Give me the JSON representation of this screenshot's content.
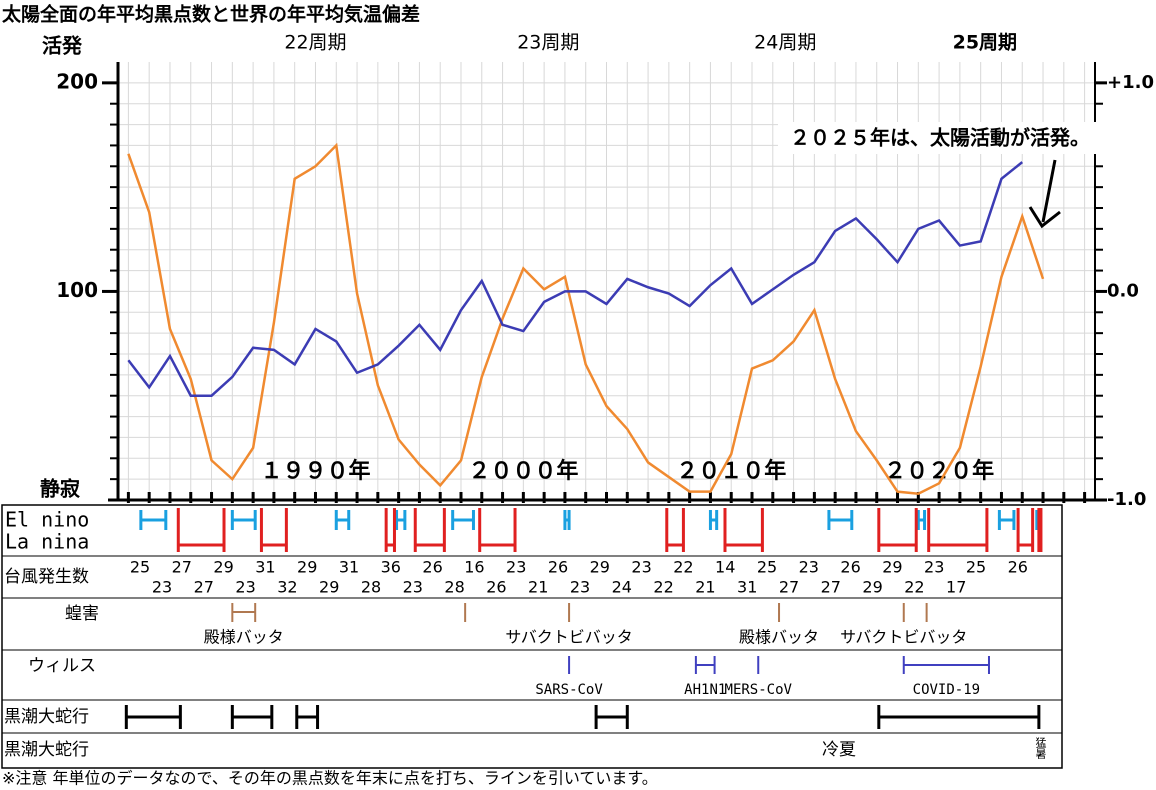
{
  "chart_data": {
    "type": "line",
    "title": "太陽全面の年平均黒点数と世界の年平均気温偏差",
    "y_top_label": "活発",
    "y_bottom_label": "静寂",
    "annotation": "２０２５年は、太陽活動が活発。",
    "x": [
      1981,
      1982,
      1983,
      1984,
      1985,
      1986,
      1987,
      1988,
      1989,
      1990,
      1991,
      1992,
      1993,
      1994,
      1995,
      1996,
      1997,
      1998,
      1999,
      2000,
      2001,
      2002,
      2003,
      2004,
      2005,
      2006,
      2007,
      2008,
      2009,
      2010,
      2011,
      2012,
      2013,
      2014,
      2015,
      2016,
      2017,
      2018,
      2019,
      2020,
      2021,
      2022,
      2023,
      2024,
      2025
    ],
    "series": [
      {
        "color": "#f08a30",
        "values": [
          166,
          138,
          82,
          58,
          19,
          10,
          25,
          85,
          154,
          160,
          170,
          99,
          55,
          29,
          17,
          7,
          19,
          59,
          87,
          111,
          101,
          107,
          65,
          45,
          34,
          18,
          11,
          4,
          4,
          22,
          63,
          67,
          76,
          91,
          58,
          33,
          19,
          4,
          3,
          8,
          25,
          64,
          107,
          136,
          106
        ]
      },
      {
        "color": "#3c3cb4",
        "axis": "y2",
        "values": [
          -0.33,
          -0.46,
          -0.31,
          -0.5,
          -0.5,
          -0.41,
          -0.27,
          -0.28,
          -0.35,
          -0.18,
          -0.24,
          -0.39,
          -0.35,
          -0.26,
          -0.16,
          -0.28,
          -0.09,
          0.05,
          -0.16,
          -0.19,
          -0.05,
          0.0,
          0.0,
          -0.06,
          0.06,
          0.02,
          -0.01,
          -0.07,
          0.03,
          0.11,
          -0.06,
          0.01,
          0.08,
          0.14,
          0.29,
          0.35,
          0.25,
          0.14,
          0.3,
          0.34,
          0.22,
          0.24,
          0.54,
          0.62,
          null
        ]
      }
    ],
    "xlim": [
      1980.5,
      2027.5
    ],
    "xticks": [
      1981,
      1982,
      1983,
      1984,
      1985,
      1986,
      1987,
      1988,
      1989,
      1990,
      1991,
      1992,
      1993,
      1994,
      1995,
      1996,
      1997,
      1998,
      1999,
      2000,
      2001,
      2002,
      2003,
      2004,
      2005,
      2006,
      2007,
      2008,
      2009,
      2010,
      2011,
      2012,
      2013,
      2014,
      2015,
      2016,
      2017,
      2018,
      2019,
      2020,
      2021,
      2022,
      2023,
      2024,
      2025,
      2026,
      2027
    ],
    "year_labels": [
      {
        "value": 1990,
        "label": "１９９０年"
      },
      {
        "value": 2000,
        "label": "２０００年"
      },
      {
        "value": 2010,
        "label": "２０１０年"
      },
      {
        "value": 2020,
        "label": "２０２０年"
      }
    ],
    "cycle_labels": [
      {
        "value": 1990,
        "label": "22周期"
      },
      {
        "value": 2001.2,
        "label": "23周期"
      },
      {
        "value": 2012.6,
        "label": "24周期"
      },
      {
        "value": 2022.2,
        "label": "25周期",
        "bold": true
      }
    ],
    "ylim": [
      0,
      210
    ],
    "yticks": [
      100,
      200
    ],
    "yminor": [
      10,
      20,
      30,
      40,
      50,
      60,
      70,
      80,
      90,
      100,
      110,
      120,
      130,
      140,
      150,
      160,
      170,
      180,
      190,
      200
    ],
    "y2lim": [
      -1.0,
      1.1
    ],
    "y2ticks": [
      {
        "value": 1,
        "label": "+1.0"
      },
      {
        "value": 0,
        "label": "0.0"
      },
      {
        "value": -1,
        "label": "-1.0"
      }
    ],
    "grid": true
  },
  "table": {
    "enso": {
      "el_label": "El nino",
      "el_color": "#1aa0e0",
      "el": [
        [
          1981.6,
          1982.8
        ],
        [
          1986.0,
          1987.1
        ],
        [
          1991.0,
          1991.6
        ],
        [
          1993.9,
          1994.3
        ],
        [
          1996.6,
          1997.6
        ],
        [
          2002.0,
          2002.2
        ],
        [
          2009.0,
          2009.3
        ],
        [
          2014.7,
          2015.8
        ],
        [
          2019.0,
          2019.3
        ],
        [
          2022.9,
          2023.6
        ],
        [
          2024.7,
          2024.8
        ]
      ],
      "la_label": "La nina",
      "la_color": "#e02020",
      "la": [
        [
          1983.4,
          1985.6
        ],
        [
          1987.4,
          1988.6
        ],
        [
          1993.4,
          1993.8
        ],
        [
          1994.8,
          1996.2
        ],
        [
          1997.9,
          1999.6
        ],
        [
          2006.9,
          2007.7
        ],
        [
          2009.7,
          2011.5
        ],
        [
          2017.1,
          2018.9
        ],
        [
          2019.5,
          2022.3
        ],
        [
          2023.8,
          2024.5
        ],
        [
          2024.8,
          2024.9
        ]
      ]
    },
    "typhoon": {
      "label": "台風発生数",
      "top": [
        25,
        27,
        29,
        31,
        29,
        31,
        36,
        26,
        16,
        23,
        26,
        29,
        23,
        22,
        14,
        25,
        23,
        26,
        29,
        23,
        25,
        26
      ],
      "bottom": [
        23,
        27,
        23,
        32,
        29,
        28,
        23,
        28,
        26,
        21,
        23,
        24,
        22,
        21,
        31,
        27,
        27,
        29,
        22,
        17
      ]
    },
    "locust": {
      "label": "蝗害",
      "color": "#b07850",
      "events": [
        {
          "range": [
            1986.0,
            1987.1
          ],
          "label": "殿様バッタ"
        },
        {
          "range": [
            1997.2,
            1997.2
          ]
        },
        {
          "range": [
            2002.2,
            2002.2
          ],
          "label": "サバクトビバッタ"
        },
        {
          "range": [
            2012.3,
            2012.3
          ],
          "label": "殿様バッタ"
        },
        {
          "range": [
            2018.3,
            2018.3
          ],
          "label": "サバクトビバッタ"
        },
        {
          "range": [
            2019.4,
            2019.4
          ]
        }
      ]
    },
    "virus": {
      "label": "ウィルス",
      "color": "#4040c0",
      "events": [
        {
          "range": [
            2002.2,
            2002.2
          ],
          "label": "SARS-CoV"
        },
        {
          "range": [
            2008.3,
            2009.2
          ],
          "label": "AH1N1"
        },
        {
          "range": [
            2011.3,
            2011.3
          ],
          "label": "MERS-CoV"
        },
        {
          "range": [
            2018.3,
            2022.4
          ],
          "label": "COVID-19"
        }
      ]
    },
    "kuroshio": {
      "label": "黒潮大蛇行",
      "color": "#000000",
      "ranges": [
        [
          1980.9,
          1983.5
        ],
        [
          1986.0,
          1987.9
        ],
        [
          1989.1,
          1990.1
        ],
        [
          2003.5,
          2005.0
        ],
        [
          2017.1,
          2024.8
        ]
      ]
    },
    "summer": {
      "label": "黒潮大蛇行",
      "cool": "冷夏",
      "hot": "猛暑"
    }
  },
  "footnote": "※注意 年単位のデータなので、その年の黒点数を年末に点を打ち、ラインを引いています。"
}
